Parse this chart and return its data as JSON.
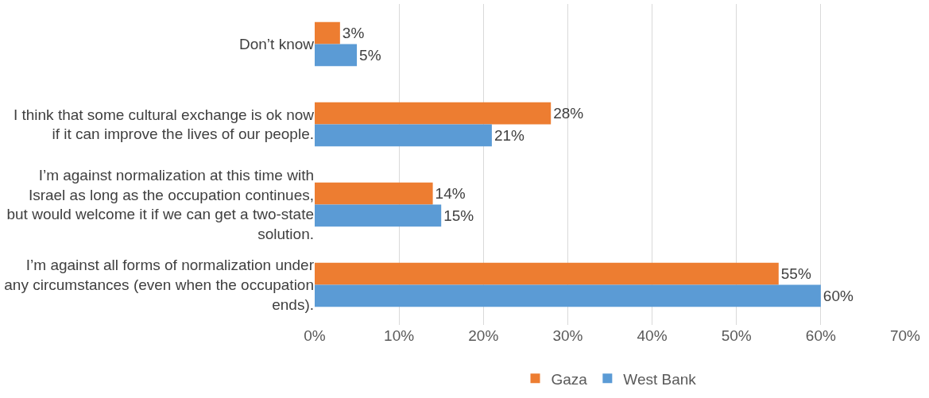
{
  "chart_data": {
    "type": "bar",
    "orientation": "horizontal",
    "categories": [
      "Don’t know",
      "I think that some cultural exchange is ok now if it can improve the lives of our people.",
      "I’m against normalization at this time with Israel as long as the occupation continues, but would welcome it if we can get a two-state solution.",
      "I’m against all forms of normalization under any circumstances (even when the occupation ends)."
    ],
    "series": [
      {
        "name": "Gaza",
        "color": "#ed7d31",
        "values": [
          3,
          28,
          14,
          55
        ],
        "value_labels": [
          "3%",
          "28%",
          "14%",
          "55%"
        ]
      },
      {
        "name": "West Bank",
        "color": "#5b9bd5",
        "values": [
          5,
          21,
          15,
          60
        ],
        "value_labels": [
          "5%",
          "21%",
          "15%",
          "60%"
        ]
      }
    ],
    "xlim": [
      0,
      70
    ],
    "xticks": [
      {
        "value": 0,
        "label": "0%"
      },
      {
        "value": 10,
        "label": "10%"
      },
      {
        "value": 20,
        "label": "20%"
      },
      {
        "value": 30,
        "label": "30%"
      },
      {
        "value": 40,
        "label": "40%"
      },
      {
        "value": 50,
        "label": "50%"
      },
      {
        "value": 60,
        "label": "60%"
      },
      {
        "value": 70,
        "label": "70%"
      }
    ],
    "grid": "x",
    "legend": "bottom"
  }
}
